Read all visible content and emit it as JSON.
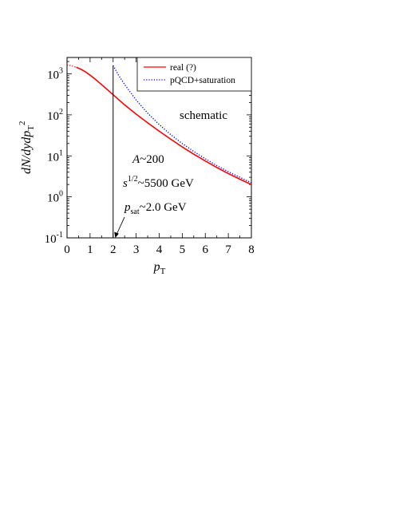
{
  "chart_data": {
    "type": "line",
    "title": "",
    "xlabel": {
      "base": "p",
      "sub": "T"
    },
    "ylabel": {
      "main": "dN/dydp",
      "sub": "T",
      "sup": "2"
    },
    "xlim": [
      0,
      8
    ],
    "ylim_log10": [
      -1,
      3.4
    ],
    "y_scale": "log",
    "x_ticks": [
      "0",
      "1",
      "2",
      "3",
      "4",
      "5",
      "6",
      "7",
      "8"
    ],
    "y_ticks": [
      {
        "base": "10",
        "exp": "-1",
        "log10": -1
      },
      {
        "base": "10",
        "exp": "0",
        "log10": 0
      },
      {
        "base": "10",
        "exp": "1",
        "log10": 1
      },
      {
        "base": "10",
        "exp": "2",
        "log10": 2
      },
      {
        "base": "10",
        "exp": "3",
        "log10": 3
      }
    ],
    "legend": {
      "placement": "top-right",
      "entries": [
        {
          "label": "real (?)",
          "color": "#ff0000",
          "style": "solid"
        },
        {
          "label": "pQCD+saturation",
          "color": "#0000ff",
          "style": "dotted"
        }
      ]
    },
    "series": [
      {
        "name": "real (?)",
        "color": "#ff0000",
        "style": "solid",
        "segments": [
          {
            "style": "dotted",
            "x": [
              0.0,
              0.2,
              0.4
            ],
            "y": [
              1650,
              1580,
              1450
            ]
          },
          {
            "style": "solid",
            "x": [
              0.4,
              0.6,
              0.8,
              1.0,
              1.2,
              1.4,
              1.6,
              1.8,
              2.0,
              2.5,
              3.0,
              3.5,
              4.0,
              4.5,
              5.0,
              5.5,
              6.0,
              6.5,
              7.0,
              7.5,
              8.0
            ],
            "y": [
              1450,
              1300,
              1120,
              930,
              760,
              610,
              490,
              390,
              310,
              175,
              104,
              64,
              40,
              25.5,
              16.5,
              11.0,
              7.5,
              5.2,
              3.7,
              2.7,
              2.0
            ]
          }
        ]
      },
      {
        "name": "pQCD+saturation",
        "color": "#0000ff",
        "style": "dotted",
        "segments": [
          {
            "style": "dotted",
            "x": [
              2.0,
              2.25,
              2.5,
              3.0,
              3.5,
              4.0,
              4.5,
              5.0,
              5.5,
              6.0,
              6.5,
              7.0,
              7.5,
              8.0
            ],
            "y": [
              1600,
              900,
              550,
              230,
              110,
              58,
              33,
              20,
              12.8,
              8.5,
              5.8,
              4.1,
              3.0,
              2.2
            ]
          }
        ]
      }
    ],
    "annotations": {
      "schematic": "schematic",
      "a_label": {
        "var": "A",
        "text": "~200"
      },
      "s_label": {
        "var": "s",
        "sup": "1/2",
        "text": "~5500 GeV"
      },
      "psat_label": {
        "var": "p",
        "sub": "sat",
        "text": "~2.0 GeV"
      },
      "vertical_line_x": 2.0
    }
  }
}
